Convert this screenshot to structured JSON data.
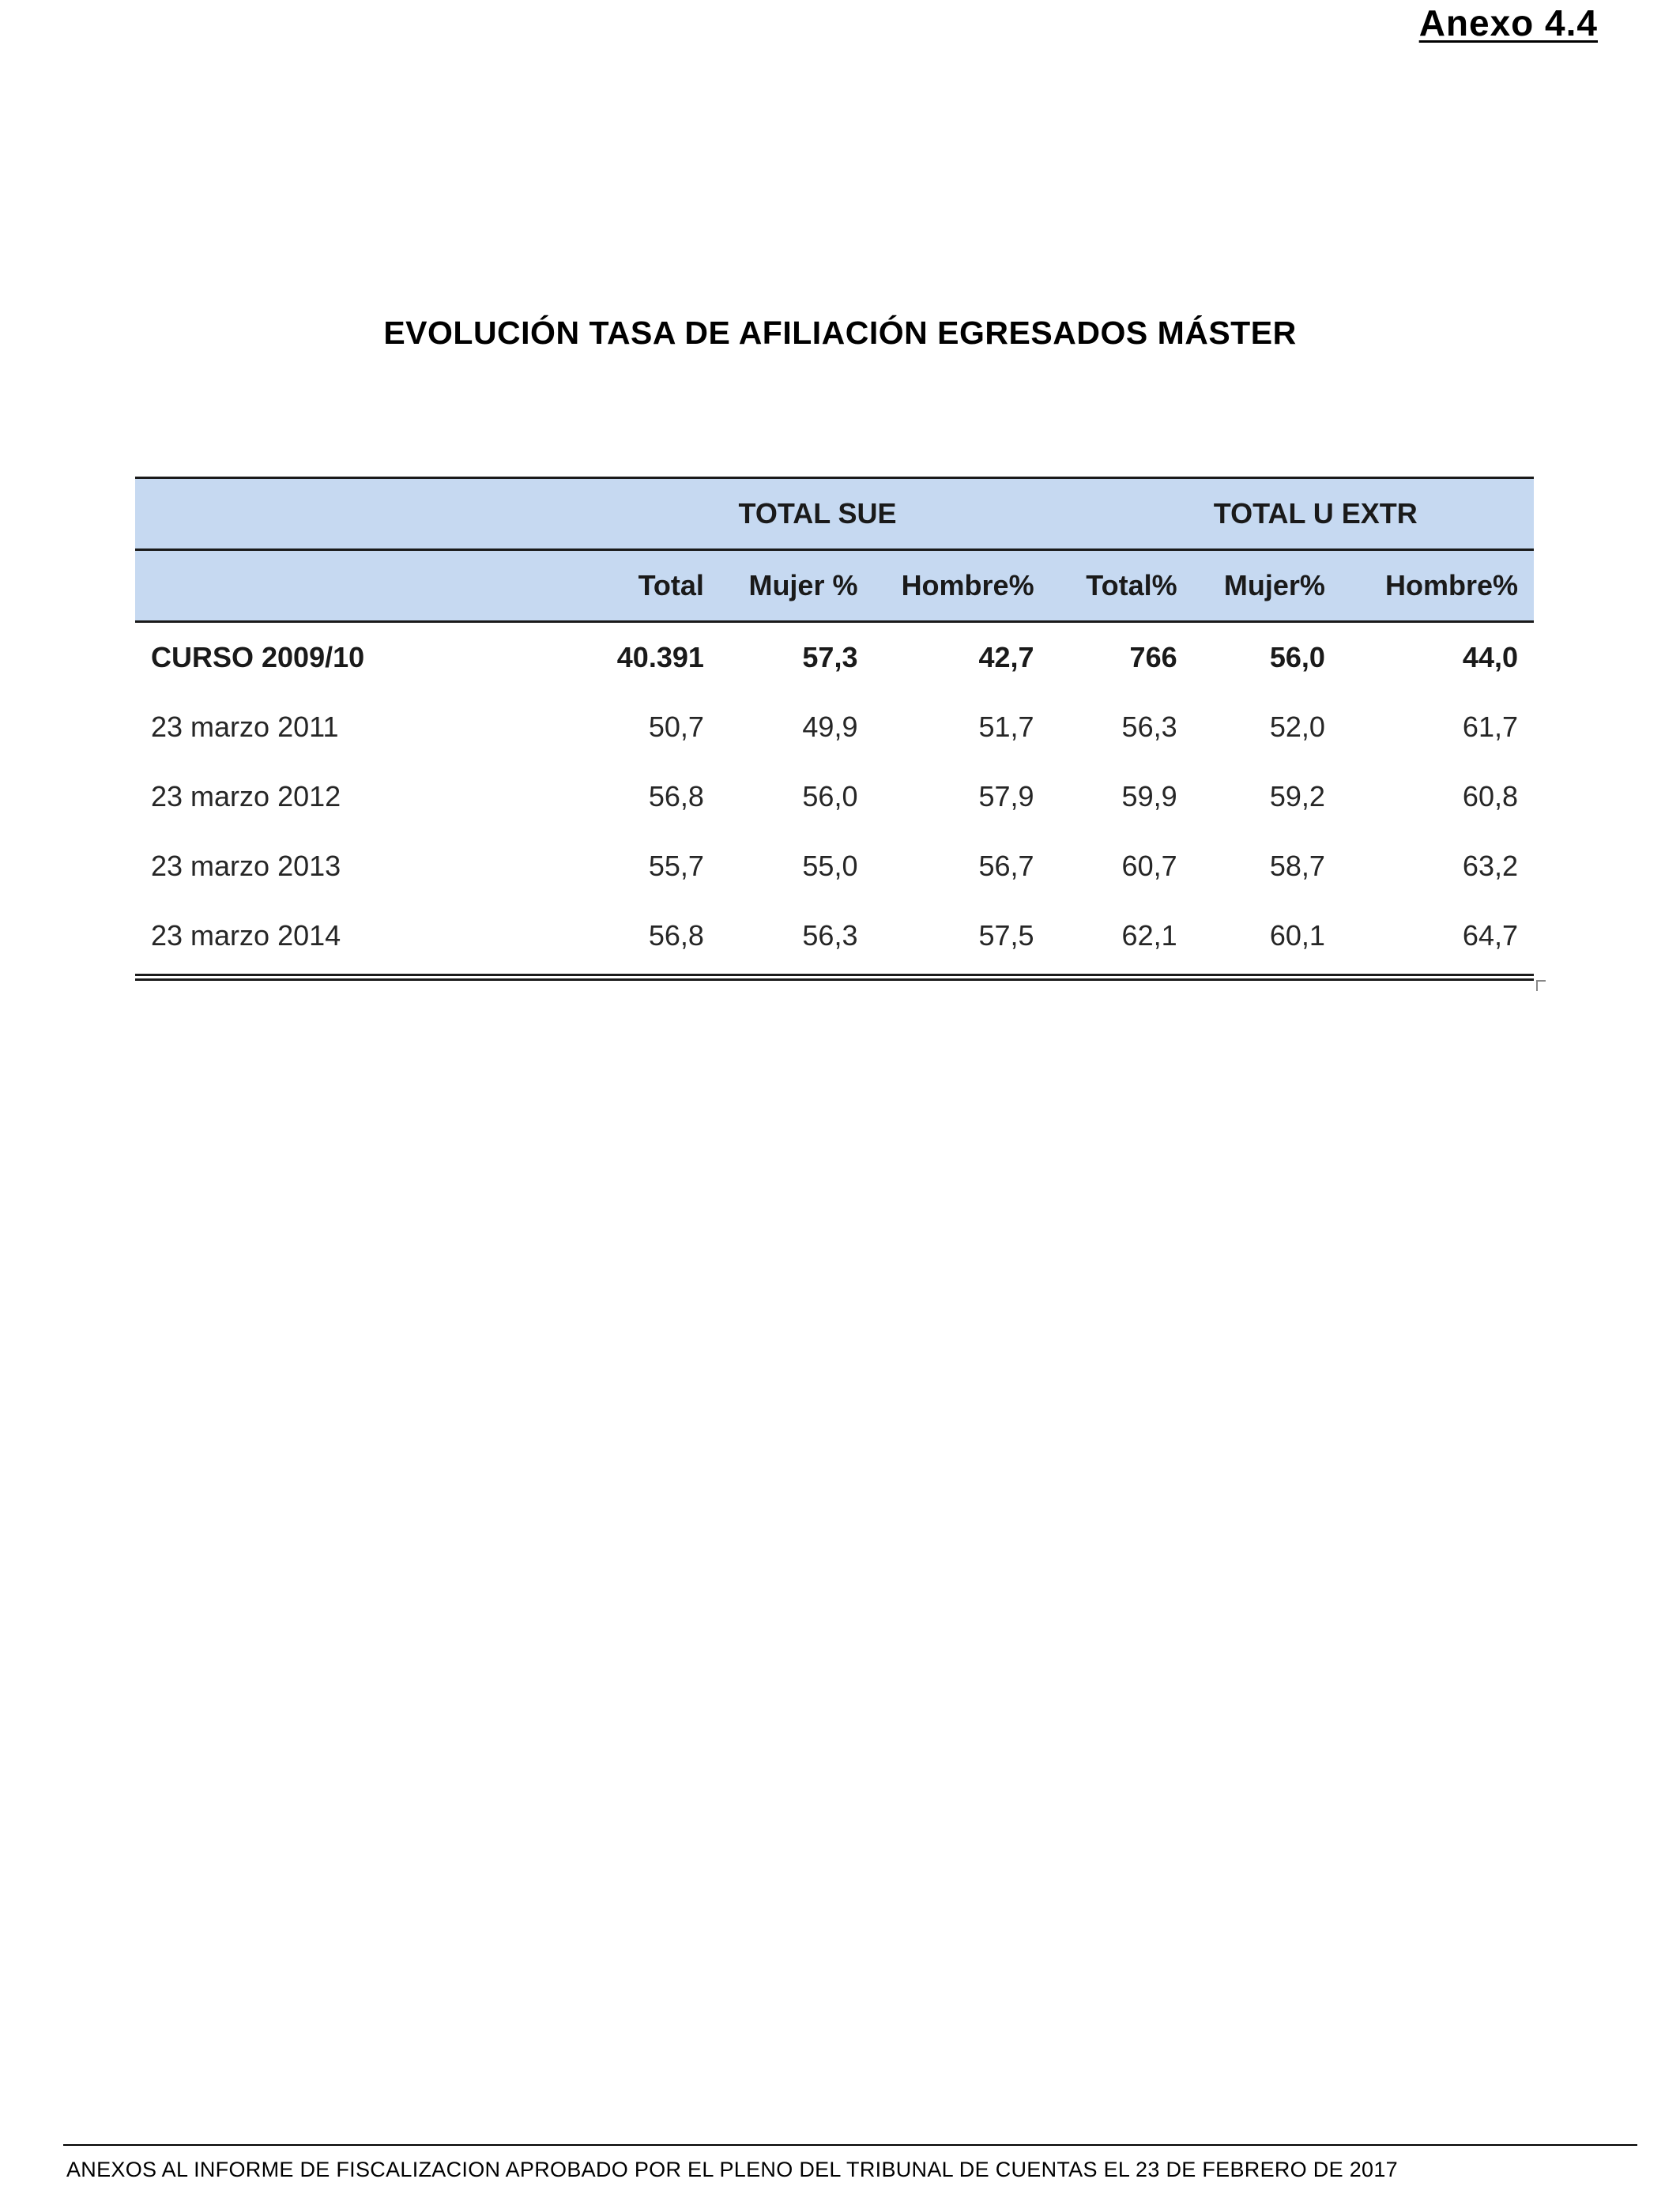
{
  "annex_label": "Anexo 4.4",
  "title": "EVOLUCIÓN TASA DE AFILIACIÓN EGRESADOS MÁSTER",
  "table": {
    "groups": [
      "TOTAL  SUE",
      "TOTAL  U EXTR"
    ],
    "columns": [
      "Total",
      "Mujer %",
      "Hombre%",
      "Total%",
      "Mujer%",
      "Hombre%"
    ],
    "rows": [
      {
        "label": "CURSO 2009/10",
        "values": [
          "40.391",
          "57,3",
          "42,7",
          "766",
          "56,0",
          "44,0"
        ]
      },
      {
        "label": "23 marzo 2011",
        "values": [
          "50,7",
          "49,9",
          "51,7",
          "56,3",
          "52,0",
          "61,7"
        ]
      },
      {
        "label": "23 marzo 2012",
        "values": [
          "56,8",
          "56,0",
          "57,9",
          "59,9",
          "59,2",
          "60,8"
        ]
      },
      {
        "label": "23 marzo 2013",
        "values": [
          "55,7",
          "55,0",
          "56,7",
          "60,7",
          "58,7",
          "63,2"
        ]
      },
      {
        "label": "23 marzo 2014",
        "values": [
          "56,8",
          "56,3",
          "57,5",
          "62,1",
          "60,1",
          "64,7"
        ]
      }
    ]
  },
  "footer": "ANEXOS AL INFORME DE FISCALIZACION APROBADO POR EL PLENO DEL TRIBUNAL DE CUENTAS EL 23 DE FEBRERO DE 2017",
  "colors": {
    "header_fill": "#c6d9f1",
    "text": "#262626"
  }
}
